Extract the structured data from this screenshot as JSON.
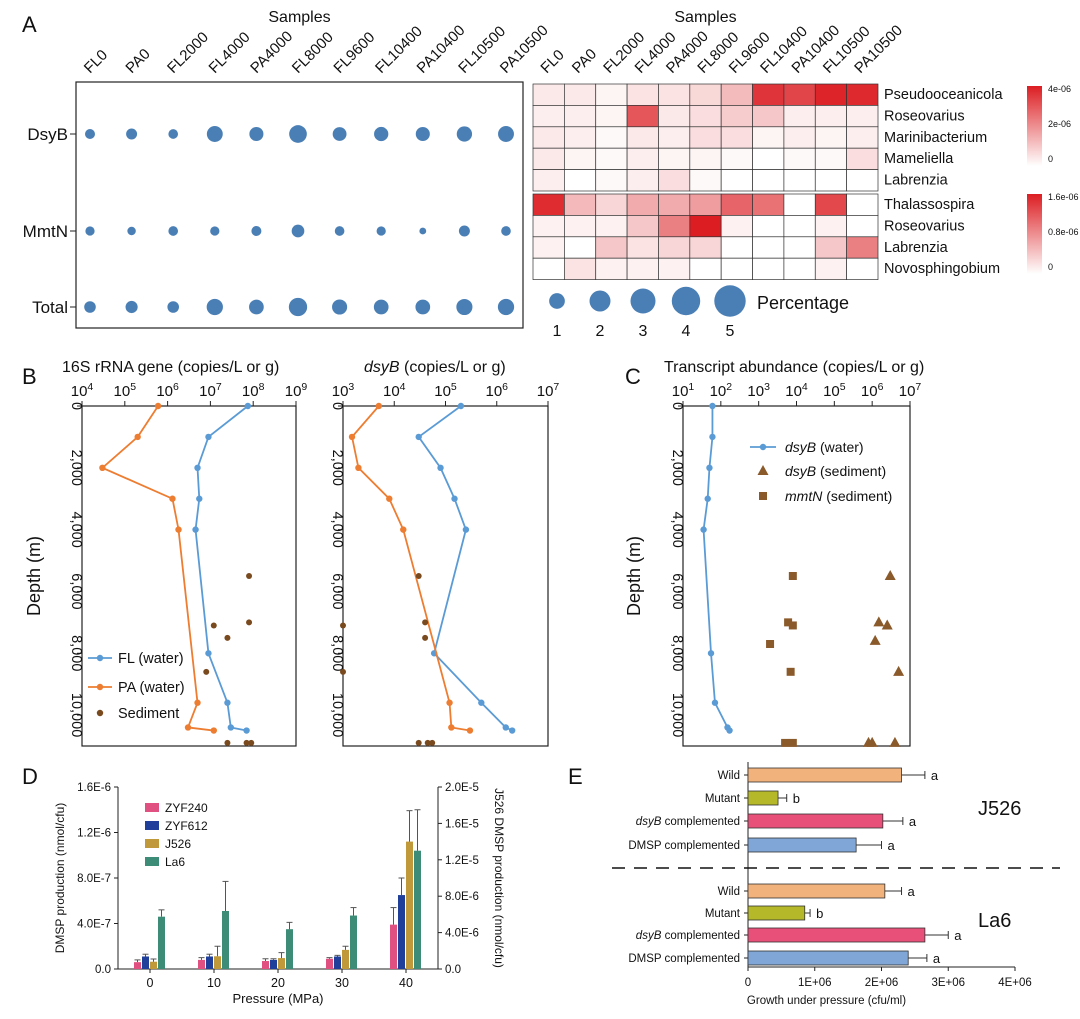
{
  "panel_labels": {
    "A": "A",
    "B": "B",
    "C": "C",
    "D": "D",
    "E": "E"
  },
  "chart_data": [
    {
      "id": "A_bubble",
      "type": "scatter",
      "xlabel": "Samples",
      "categories": [
        "FL0",
        "PA0",
        "FL2000",
        "FL4000",
        "PA4000",
        "FL8000",
        "FL9600",
        "FL10400",
        "PA10400",
        "FL10500",
        "PA10500"
      ],
      "rows": [
        "DsyB",
        "MmtN",
        "Total"
      ],
      "values": [
        [
          1.0,
          1.3,
          0.9,
          3.4,
          2.5,
          4.4,
          2.4,
          2.6,
          2.5,
          3.1,
          3.4
        ],
        [
          0.8,
          0.6,
          0.9,
          0.8,
          1.0,
          1.9,
          0.9,
          0.8,
          0.3,
          1.3,
          0.9
        ],
        [
          1.5,
          1.7,
          1.5,
          3.6,
          2.8,
          4.8,
          3.0,
          2.8,
          2.8,
          3.5,
          3.6
        ]
      ],
      "size_legend": {
        "title": "Percentage",
        "levels": [
          1,
          2,
          3,
          4,
          5
        ]
      },
      "color": "#4a7fb5"
    },
    {
      "id": "A_heatmap",
      "type": "heatmap",
      "xlabel": "Samples",
      "categories": [
        "FL0",
        "PA0",
        "FL2000",
        "FL4000",
        "PA4000",
        "FL8000",
        "FL9600",
        "FL10400",
        "PA10400",
        "FL10500",
        "PA10500"
      ],
      "blocks": [
        {
          "rows": [
            "Pseudooceanicola",
            "Roseovarius",
            "Marinibacterium",
            "Mameliella",
            "Labrenzia"
          ],
          "values": [
            [
              0.4,
              0.4,
              0.2,
              0.5,
              0.5,
              0.7,
              1.2,
              3.6,
              3.3,
              3.9,
              3.8
            ],
            [
              0.3,
              0.3,
              0.2,
              3.0,
              0.4,
              0.6,
              0.9,
              1.0,
              0.3,
              0.3,
              0.3
            ],
            [
              0.4,
              0.3,
              0.1,
              0.4,
              0.3,
              0.6,
              0.6,
              0.2,
              0.3,
              0.2,
              0.3
            ],
            [
              0.4,
              0.2,
              0.1,
              0.3,
              0.2,
              0.2,
              0.1,
              0.0,
              0.1,
              0.1,
              0.6
            ],
            [
              0.3,
              0.0,
              0.1,
              0.3,
              0.6,
              0.1,
              0.0,
              0.0,
              0.0,
              0.0,
              0.0
            ]
          ],
          "colorbar": {
            "ticks": [
              "4e-06",
              "2e-06",
              "0"
            ],
            "max": 4.0
          }
        },
        {
          "rows": [
            "Thalassospira",
            "Roseovarius",
            "Labrenzia",
            "Novosphingobium"
          ],
          "values": [
            [
              1.5,
              0.5,
              0.3,
              0.6,
              0.6,
              0.7,
              1.1,
              1.0,
              0.0,
              1.3,
              0.0
            ],
            [
              0.1,
              0.1,
              0.1,
              0.4,
              0.9,
              1.6,
              0.1,
              0.0,
              0.0,
              0.1,
              0.0
            ],
            [
              0.1,
              0.0,
              0.4,
              0.2,
              0.3,
              0.3,
              0.0,
              0.0,
              0.0,
              0.4,
              0.9
            ],
            [
              0.0,
              0.2,
              0.1,
              0.1,
              0.1,
              0.0,
              0.0,
              0.0,
              0.0,
              0.1,
              0.0
            ]
          ],
          "colorbar": {
            "ticks": [
              "1.6e-06",
              "0.8e-06",
              "0"
            ],
            "max": 1.6
          }
        }
      ]
    },
    {
      "id": "B_16S",
      "type": "line",
      "title": "16S rRNA gene (copies/L or g)",
      "ylabel": "Depth (m)",
      "xscale": "log",
      "xlim": [
        10000,
        1000000000
      ],
      "ylim": [
        11000,
        0
      ],
      "xticks": [
        "10^4",
        "10^5",
        "10^6",
        "10^7",
        "10^8",
        "10^9"
      ],
      "yticks": [
        "0",
        "2,000",
        "4,000",
        "6,000",
        "8,000",
        "10,000"
      ],
      "series": [
        {
          "name": "FL (water)",
          "color": "#5b9bd5",
          "points": [
            [
              75000000,
              0
            ],
            [
              9000000,
              1000
            ],
            [
              5000000,
              2000
            ],
            [
              5500000,
              3000
            ],
            [
              4500000,
              4000
            ],
            [
              9000000,
              8000
            ],
            [
              25000000,
              9600
            ],
            [
              30000000,
              10400
            ],
            [
              70000000,
              10500
            ]
          ]
        },
        {
          "name": "PA (water)",
          "color": "#ed7d31",
          "points": [
            [
              600000,
              0
            ],
            [
              200000,
              1000
            ],
            [
              30000,
              2000
            ],
            [
              1300000,
              3000
            ],
            [
              1800000,
              4000
            ],
            [
              5000000,
              9600
            ],
            [
              3000000,
              10400
            ],
            [
              12000000,
              10500
            ]
          ]
        },
        {
          "name": "Sediment",
          "color": "#7a4a1f",
          "scatter": true,
          "points": [
            [
              80000000,
              5500
            ],
            [
              80000000,
              7000
            ],
            [
              12000000,
              7100
            ],
            [
              25000000,
              7500
            ],
            [
              8000000,
              8600
            ],
            [
              25000000,
              10900
            ],
            [
              70000000,
              10900
            ],
            [
              90000000,
              10900
            ]
          ]
        }
      ]
    },
    {
      "id": "B_dsyB",
      "type": "line",
      "title_italic": "dsyB",
      "title_rest": " (copies/L or g)",
      "xscale": "log",
      "xlim": [
        1000,
        10000000
      ],
      "ylim": [
        11000,
        0
      ],
      "xticks": [
        "10^3",
        "10^4",
        "10^5",
        "10^6",
        "10^7"
      ],
      "yticks": [
        "0",
        "2,000",
        "4,000",
        "6,000",
        "8,000",
        "10,000"
      ],
      "series": [
        {
          "name": "FL (water)",
          "color": "#5b9bd5",
          "points": [
            [
              200000,
              0
            ],
            [
              30000,
              1000
            ],
            [
              80000,
              2000
            ],
            [
              150000,
              3000
            ],
            [
              250000,
              4000
            ],
            [
              60000,
              8000
            ],
            [
              500000,
              9600
            ],
            [
              1500000,
              10400
            ],
            [
              2000000,
              10500
            ]
          ]
        },
        {
          "name": "PA (water)",
          "color": "#ed7d31",
          "points": [
            [
              5000,
              0
            ],
            [
              1500,
              1000
            ],
            [
              2000,
              2000
            ],
            [
              8000,
              3000
            ],
            [
              15000,
              4000
            ],
            [
              120000,
              9600
            ],
            [
              130000,
              10400
            ],
            [
              300000,
              10500
            ]
          ]
        },
        {
          "name": "Sediment",
          "color": "#7a4a1f",
          "scatter": true,
          "points": [
            [
              30000,
              5500
            ],
            [
              40000,
              7000
            ],
            [
              1000,
              7100
            ],
            [
              40000,
              7500
            ],
            [
              1000,
              8600
            ],
            [
              30000,
              10900
            ],
            [
              45000,
              10900
            ],
            [
              55000,
              10900
            ]
          ]
        }
      ]
    },
    {
      "id": "C_transcript",
      "type": "line",
      "title": "Transcript abundance (copies/L or g)",
      "ylabel": "Depth (m)",
      "xscale": "log",
      "xlim": [
        10,
        10000000
      ],
      "ylim": [
        11000,
        0
      ],
      "xticks": [
        "10^1",
        "10^2",
        "10^3",
        "10^4",
        "10^5",
        "10^6",
        "10^7"
      ],
      "yticks": [
        "0",
        "2,000",
        "4,000",
        "6,000",
        "8,000",
        "10,000"
      ],
      "legend": [
        {
          "italic": "dsyB",
          "rest": " (water)",
          "marker": "circle",
          "color": "#5b9bd5"
        },
        {
          "italic": "dsyB",
          "rest": " (sediment)",
          "marker": "triangle",
          "color": "#8b5a2b"
        },
        {
          "italic": "mmtN",
          "rest": " (sediment)",
          "marker": "square",
          "color": "#8b5a2b"
        }
      ],
      "series": [
        {
          "name": "dsyB (water)",
          "color": "#5b9bd5",
          "marker": "circle",
          "line": true,
          "points": [
            [
              60,
              0
            ],
            [
              60,
              1000
            ],
            [
              50,
              2000
            ],
            [
              45,
              3000
            ],
            [
              35,
              4000
            ],
            [
              55,
              8000
            ],
            [
              70,
              9600
            ],
            [
              150,
              10400
            ],
            [
              170,
              10500
            ]
          ]
        },
        {
          "name": "dsyB (sediment)",
          "color": "#8b5a2b",
          "marker": "triangle",
          "points": [
            [
              3000000,
              5500
            ],
            [
              1500000,
              7000
            ],
            [
              2500000,
              7100
            ],
            [
              1200000,
              7600
            ],
            [
              5000000,
              8600
            ],
            [
              800000,
              10900
            ],
            [
              1000000,
              10900
            ],
            [
              4000000,
              10900
            ]
          ]
        },
        {
          "name": "mmtN (sediment)",
          "color": "#8b5a2b",
          "marker": "square",
          "points": [
            [
              8000,
              5500
            ],
            [
              6000,
              7000
            ],
            [
              8000,
              7100
            ],
            [
              2000,
              7700
            ],
            [
              7000,
              8600
            ],
            [
              5000,
              10900
            ],
            [
              8000,
              10900
            ]
          ]
        }
      ]
    },
    {
      "id": "D_DMSP",
      "type": "bar",
      "xlabel": "Pressure (MPa)",
      "ylabel": "DMSP production (nmol/cfu)",
      "y2label": "J526 DMSP production (nmol/cfu)",
      "categories": [
        "0",
        "10",
        "20",
        "30",
        "40"
      ],
      "ylim": [
        0,
        1.6e-06
      ],
      "y2lim": [
        0,
        2e-05
      ],
      "yticks": [
        "0.0",
        "4.0E-7",
        "8.0E-7",
        "1.2E-6",
        "1.6E-6"
      ],
      "y2ticks": [
        "0.0",
        "4.0E-6",
        "8.0E-6",
        "1.2E-5",
        "1.6E-5",
        "2.0E-5"
      ],
      "series": [
        {
          "name": "ZYF240",
          "color": "#e05080",
          "values": [
            6e-08,
            8e-08,
            7e-08,
            9e-08,
            3.9e-07
          ],
          "errors": [
            2e-08,
            2e-08,
            2e-08,
            1e-08,
            1.5e-07
          ]
        },
        {
          "name": "ZYF612",
          "color": "#1f3f9a",
          "values": [
            1.1e-07,
            1.1e-07,
            8e-08,
            1.1e-07,
            6.5e-07
          ],
          "errors": [
            2e-08,
            2e-08,
            1e-08,
            1e-08,
            1.5e-07
          ]
        },
        {
          "name": "J526",
          "color": "#c09a3a",
          "axis": "right",
          "values": [
            8e-07,
            1.4e-06,
            1.2e-06,
            2.1e-06,
            1.4e-05
          ],
          "errors": [
            3e-07,
            1.1e-06,
            6e-07,
            4e-07,
            3.4e-06
          ]
        },
        {
          "name": "La6",
          "color": "#3d8c77",
          "values": [
            4.6e-07,
            5.1e-07,
            3.5e-07,
            4.7e-07,
            1.04e-06
          ],
          "errors": [
            6e-08,
            2.6e-07,
            6e-08,
            7e-08,
            3.6e-07
          ]
        }
      ]
    },
    {
      "id": "E_growth",
      "type": "bar",
      "orientation": "horizontal",
      "xlabel": "Growth under pressure (cfu/ml)",
      "xlim": [
        0,
        4000000
      ],
      "xticks": [
        "0",
        "1E+06",
        "2E+06",
        "3E+06",
        "4E+06"
      ],
      "groups": [
        {
          "name": "J526",
          "categories": [
            "Wild",
            "Mutant",
            "dsyB complemented",
            "DMSP complemented"
          ],
          "values": [
            2300000,
            450000,
            2020000,
            1620000
          ],
          "errors": [
            350000,
            130000,
            300000,
            380000
          ],
          "letters": [
            "a",
            "b",
            "a",
            "a"
          ]
        },
        {
          "name": "La6",
          "categories": [
            "Wild",
            "Mutant",
            "dsyB complemented",
            "DMSP complemented"
          ],
          "values": [
            2050000,
            850000,
            2650000,
            2400000
          ],
          "errors": [
            250000,
            80000,
            350000,
            280000
          ],
          "letters": [
            "a",
            "b",
            "a",
            "a"
          ]
        }
      ],
      "colors": [
        "#f2b27c",
        "#b5b829",
        "#e8507a",
        "#7fa6d6"
      ]
    }
  ]
}
